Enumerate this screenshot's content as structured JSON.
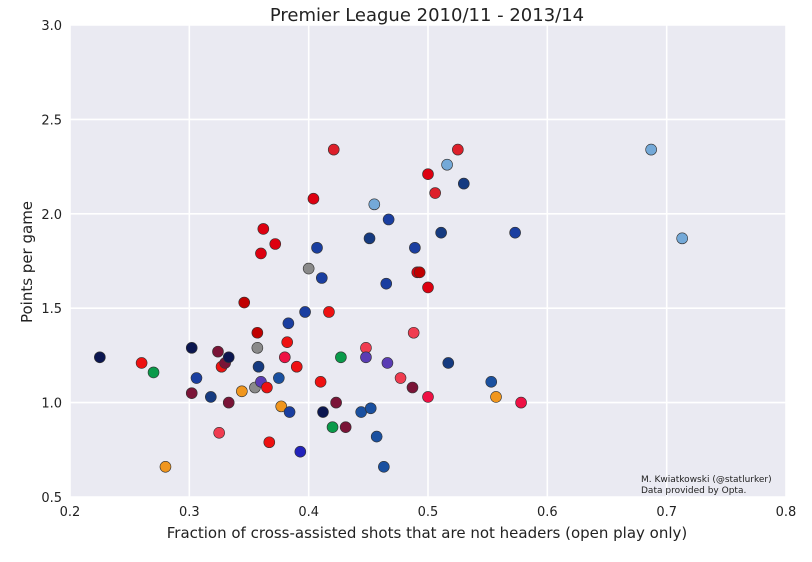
{
  "chart_data": {
    "type": "scatter",
    "title": "Premier League 2010/11 - 2013/14",
    "xlabel": "Fraction of cross-assisted shots that are not headers (open play only)",
    "ylabel": "Points per game",
    "xlim": [
      0.2,
      0.8
    ],
    "ylim": [
      0.5,
      3.0
    ],
    "xticks": [
      "0.2",
      "0.3",
      "0.4",
      "0.5",
      "0.6",
      "0.7",
      "0.8"
    ],
    "yticks": [
      "0.5",
      "1.0",
      "1.5",
      "2.0",
      "2.5",
      "3.0"
    ],
    "grid": true,
    "background": "#eaeaf2",
    "credits": [
      "M. Kwiatkowski (@statlurker)",
      "Data provided by Opta."
    ],
    "points": [
      {
        "x": 0.225,
        "y": 1.24,
        "color": "#0b1650"
      },
      {
        "x": 0.26,
        "y": 1.21,
        "color": "#ee1111"
      },
      {
        "x": 0.27,
        "y": 1.16,
        "color": "#0a9a4a"
      },
      {
        "x": 0.28,
        "y": 0.66,
        "color": "#f0961e"
      },
      {
        "x": 0.302,
        "y": 1.29,
        "color": "#0b1650"
      },
      {
        "x": 0.302,
        "y": 1.05,
        "color": "#7a1437"
      },
      {
        "x": 0.306,
        "y": 1.13,
        "color": "#1a3ea0"
      },
      {
        "x": 0.318,
        "y": 1.03,
        "color": "#153a80"
      },
      {
        "x": 0.324,
        "y": 1.27,
        "color": "#7a1437"
      },
      {
        "x": 0.325,
        "y": 0.84,
        "color": "#f03c50"
      },
      {
        "x": 0.327,
        "y": 1.19,
        "color": "#ee1111"
      },
      {
        "x": 0.33,
        "y": 1.21,
        "color": "#7a1437"
      },
      {
        "x": 0.333,
        "y": 1.24,
        "color": "#0b1650"
      },
      {
        "x": 0.333,
        "y": 1.0,
        "color": "#7a1437"
      },
      {
        "x": 0.344,
        "y": 1.06,
        "color": "#f0961e"
      },
      {
        "x": 0.346,
        "y": 1.53,
        "color": "#c00000"
      },
      {
        "x": 0.355,
        "y": 1.08,
        "color": "#8a8a8a"
      },
      {
        "x": 0.357,
        "y": 1.37,
        "color": "#c00000"
      },
      {
        "x": 0.357,
        "y": 1.29,
        "color": "#8a8a8a"
      },
      {
        "x": 0.358,
        "y": 1.19,
        "color": "#153a80"
      },
      {
        "x": 0.36,
        "y": 1.11,
        "color": "#5a3cb4"
      },
      {
        "x": 0.36,
        "y": 1.79,
        "color": "#dd0010"
      },
      {
        "x": 0.362,
        "y": 1.92,
        "color": "#dd0010"
      },
      {
        "x": 0.365,
        "y": 1.08,
        "color": "#ee1111"
      },
      {
        "x": 0.367,
        "y": 0.79,
        "color": "#ee1111"
      },
      {
        "x": 0.372,
        "y": 1.84,
        "color": "#dd0010"
      },
      {
        "x": 0.375,
        "y": 1.13,
        "color": "#1a50a0"
      },
      {
        "x": 0.377,
        "y": 0.98,
        "color": "#f0961e"
      },
      {
        "x": 0.38,
        "y": 1.24,
        "color": "#ee1144"
      },
      {
        "x": 0.382,
        "y": 1.32,
        "color": "#ee1111"
      },
      {
        "x": 0.383,
        "y": 1.42,
        "color": "#1a3ea0"
      },
      {
        "x": 0.384,
        "y": 0.95,
        "color": "#1a3ea0"
      },
      {
        "x": 0.39,
        "y": 1.19,
        "color": "#ee1111"
      },
      {
        "x": 0.393,
        "y": 0.74,
        "color": "#2222bb"
      },
      {
        "x": 0.397,
        "y": 1.48,
        "color": "#1a3ea0"
      },
      {
        "x": 0.4,
        "y": 1.71,
        "color": "#8a8a8a"
      },
      {
        "x": 0.404,
        "y": 2.08,
        "color": "#dd0010"
      },
      {
        "x": 0.407,
        "y": 1.82,
        "color": "#1a3ea0"
      },
      {
        "x": 0.41,
        "y": 1.11,
        "color": "#ee1111"
      },
      {
        "x": 0.411,
        "y": 1.66,
        "color": "#1a3ea0"
      },
      {
        "x": 0.412,
        "y": 0.95,
        "color": "#0b1650"
      },
      {
        "x": 0.417,
        "y": 1.48,
        "color": "#ee1111"
      },
      {
        "x": 0.42,
        "y": 0.87,
        "color": "#0a9a4a"
      },
      {
        "x": 0.421,
        "y": 2.34,
        "color": "#dd1f2a"
      },
      {
        "x": 0.423,
        "y": 1.0,
        "color": "#7a1437"
      },
      {
        "x": 0.427,
        "y": 1.24,
        "color": "#0a9a4a"
      },
      {
        "x": 0.431,
        "y": 0.87,
        "color": "#7a1437"
      },
      {
        "x": 0.444,
        "y": 0.95,
        "color": "#1a50a0"
      },
      {
        "x": 0.448,
        "y": 1.29,
        "color": "#f03c50"
      },
      {
        "x": 0.448,
        "y": 1.24,
        "color": "#5a3cb4"
      },
      {
        "x": 0.451,
        "y": 1.87,
        "color": "#153a80"
      },
      {
        "x": 0.452,
        "y": 0.97,
        "color": "#1a50a0"
      },
      {
        "x": 0.455,
        "y": 2.05,
        "color": "#74a9d8"
      },
      {
        "x": 0.457,
        "y": 0.82,
        "color": "#1a50a0"
      },
      {
        "x": 0.463,
        "y": 0.66,
        "color": "#1a50a0"
      },
      {
        "x": 0.465,
        "y": 1.63,
        "color": "#1a3ea0"
      },
      {
        "x": 0.466,
        "y": 1.21,
        "color": "#5a3cb4"
      },
      {
        "x": 0.467,
        "y": 1.97,
        "color": "#1a3ea0"
      },
      {
        "x": 0.477,
        "y": 1.13,
        "color": "#f03c50"
      },
      {
        "x": 0.487,
        "y": 1.08,
        "color": "#7a1437"
      },
      {
        "x": 0.488,
        "y": 1.37,
        "color": "#f03c50"
      },
      {
        "x": 0.489,
        "y": 1.82,
        "color": "#1a3ea0"
      },
      {
        "x": 0.491,
        "y": 1.69,
        "color": "#dd0010"
      },
      {
        "x": 0.493,
        "y": 1.69,
        "color": "#c00000"
      },
      {
        "x": 0.5,
        "y": 2.21,
        "color": "#dd0010"
      },
      {
        "x": 0.5,
        "y": 1.03,
        "color": "#ee1144"
      },
      {
        "x": 0.5,
        "y": 1.61,
        "color": "#dd0010"
      },
      {
        "x": 0.506,
        "y": 2.11,
        "color": "#dd1f2a"
      },
      {
        "x": 0.511,
        "y": 1.9,
        "color": "#153a80"
      },
      {
        "x": 0.516,
        "y": 2.26,
        "color": "#74a9d8"
      },
      {
        "x": 0.517,
        "y": 1.21,
        "color": "#153a80"
      },
      {
        "x": 0.525,
        "y": 2.34,
        "color": "#dd1f2a"
      },
      {
        "x": 0.53,
        "y": 2.16,
        "color": "#153a80"
      },
      {
        "x": 0.553,
        "y": 1.11,
        "color": "#1a50a0"
      },
      {
        "x": 0.557,
        "y": 1.03,
        "color": "#f0961e"
      },
      {
        "x": 0.573,
        "y": 1.9,
        "color": "#1a3ea0"
      },
      {
        "x": 0.578,
        "y": 1.0,
        "color": "#ee1144"
      },
      {
        "x": 0.687,
        "y": 2.34,
        "color": "#74a9d8"
      },
      {
        "x": 0.713,
        "y": 1.87,
        "color": "#74a9d8"
      }
    ]
  }
}
